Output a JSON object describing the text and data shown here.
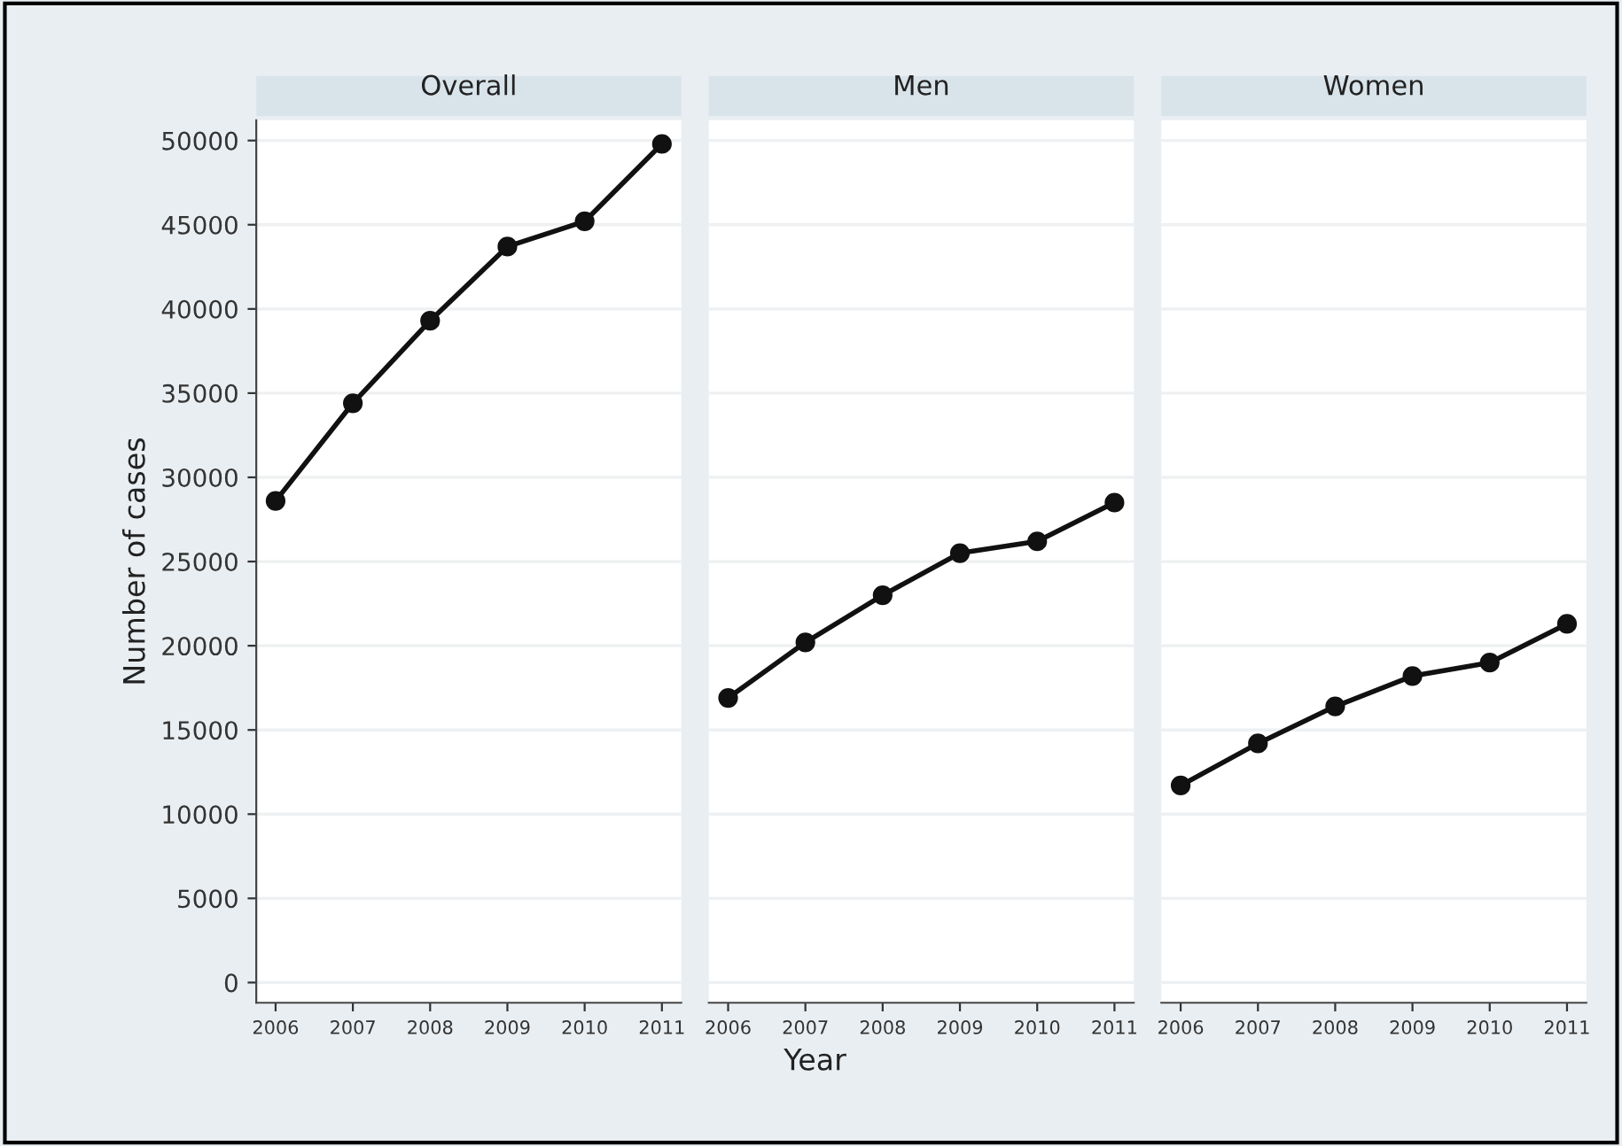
{
  "chart_data": [
    {
      "type": "line",
      "title": "Overall",
      "ylabel": "Number of cases",
      "categories": [
        "2006",
        "2007",
        "2008",
        "2009",
        "2010",
        "2011"
      ],
      "series": [
        {
          "color": "#111111",
          "values": [
            28600,
            34400,
            39300,
            43700,
            45200,
            49800
          ]
        }
      ],
      "ylim": [
        -1200,
        51200
      ],
      "yticks": [
        0,
        5000,
        10000,
        15000,
        20000,
        25000,
        30000,
        35000,
        40000,
        45000,
        50000
      ],
      "grid": "y",
      "marker": "circle",
      "line_style": "solid",
      "legend": false
    },
    {
      "type": "line",
      "title": "Men",
      "xlabel": "Year",
      "categories": [
        "2006",
        "2007",
        "2008",
        "2009",
        "2010",
        "2011"
      ],
      "series": [
        {
          "color": "#111111",
          "values": [
            16900,
            20200,
            23000,
            25500,
            26200,
            28500
          ]
        }
      ],
      "ylim": [
        -1200,
        51200
      ],
      "yticks": [
        0,
        5000,
        10000,
        15000,
        20000,
        25000,
        30000,
        35000,
        40000,
        45000,
        50000
      ],
      "grid": "y",
      "marker": "circle",
      "line_style": "solid",
      "legend": false,
      "tick_labels": "x"
    },
    {
      "type": "line",
      "title": "Women",
      "categories": [
        "2006",
        "2007",
        "2008",
        "2009",
        "2010",
        "2011"
      ],
      "series": [
        {
          "color": "#111111",
          "values": [
            11700,
            14200,
            16400,
            18200,
            19000,
            21300
          ]
        }
      ],
      "ylim": [
        -1200,
        51200
      ],
      "yticks": [
        0,
        5000,
        10000,
        15000,
        20000,
        25000,
        30000,
        35000,
        40000,
        45000,
        50000
      ],
      "grid": "y",
      "marker": "circle",
      "line_style": "solid",
      "legend": false,
      "tick_labels": "x"
    }
  ]
}
